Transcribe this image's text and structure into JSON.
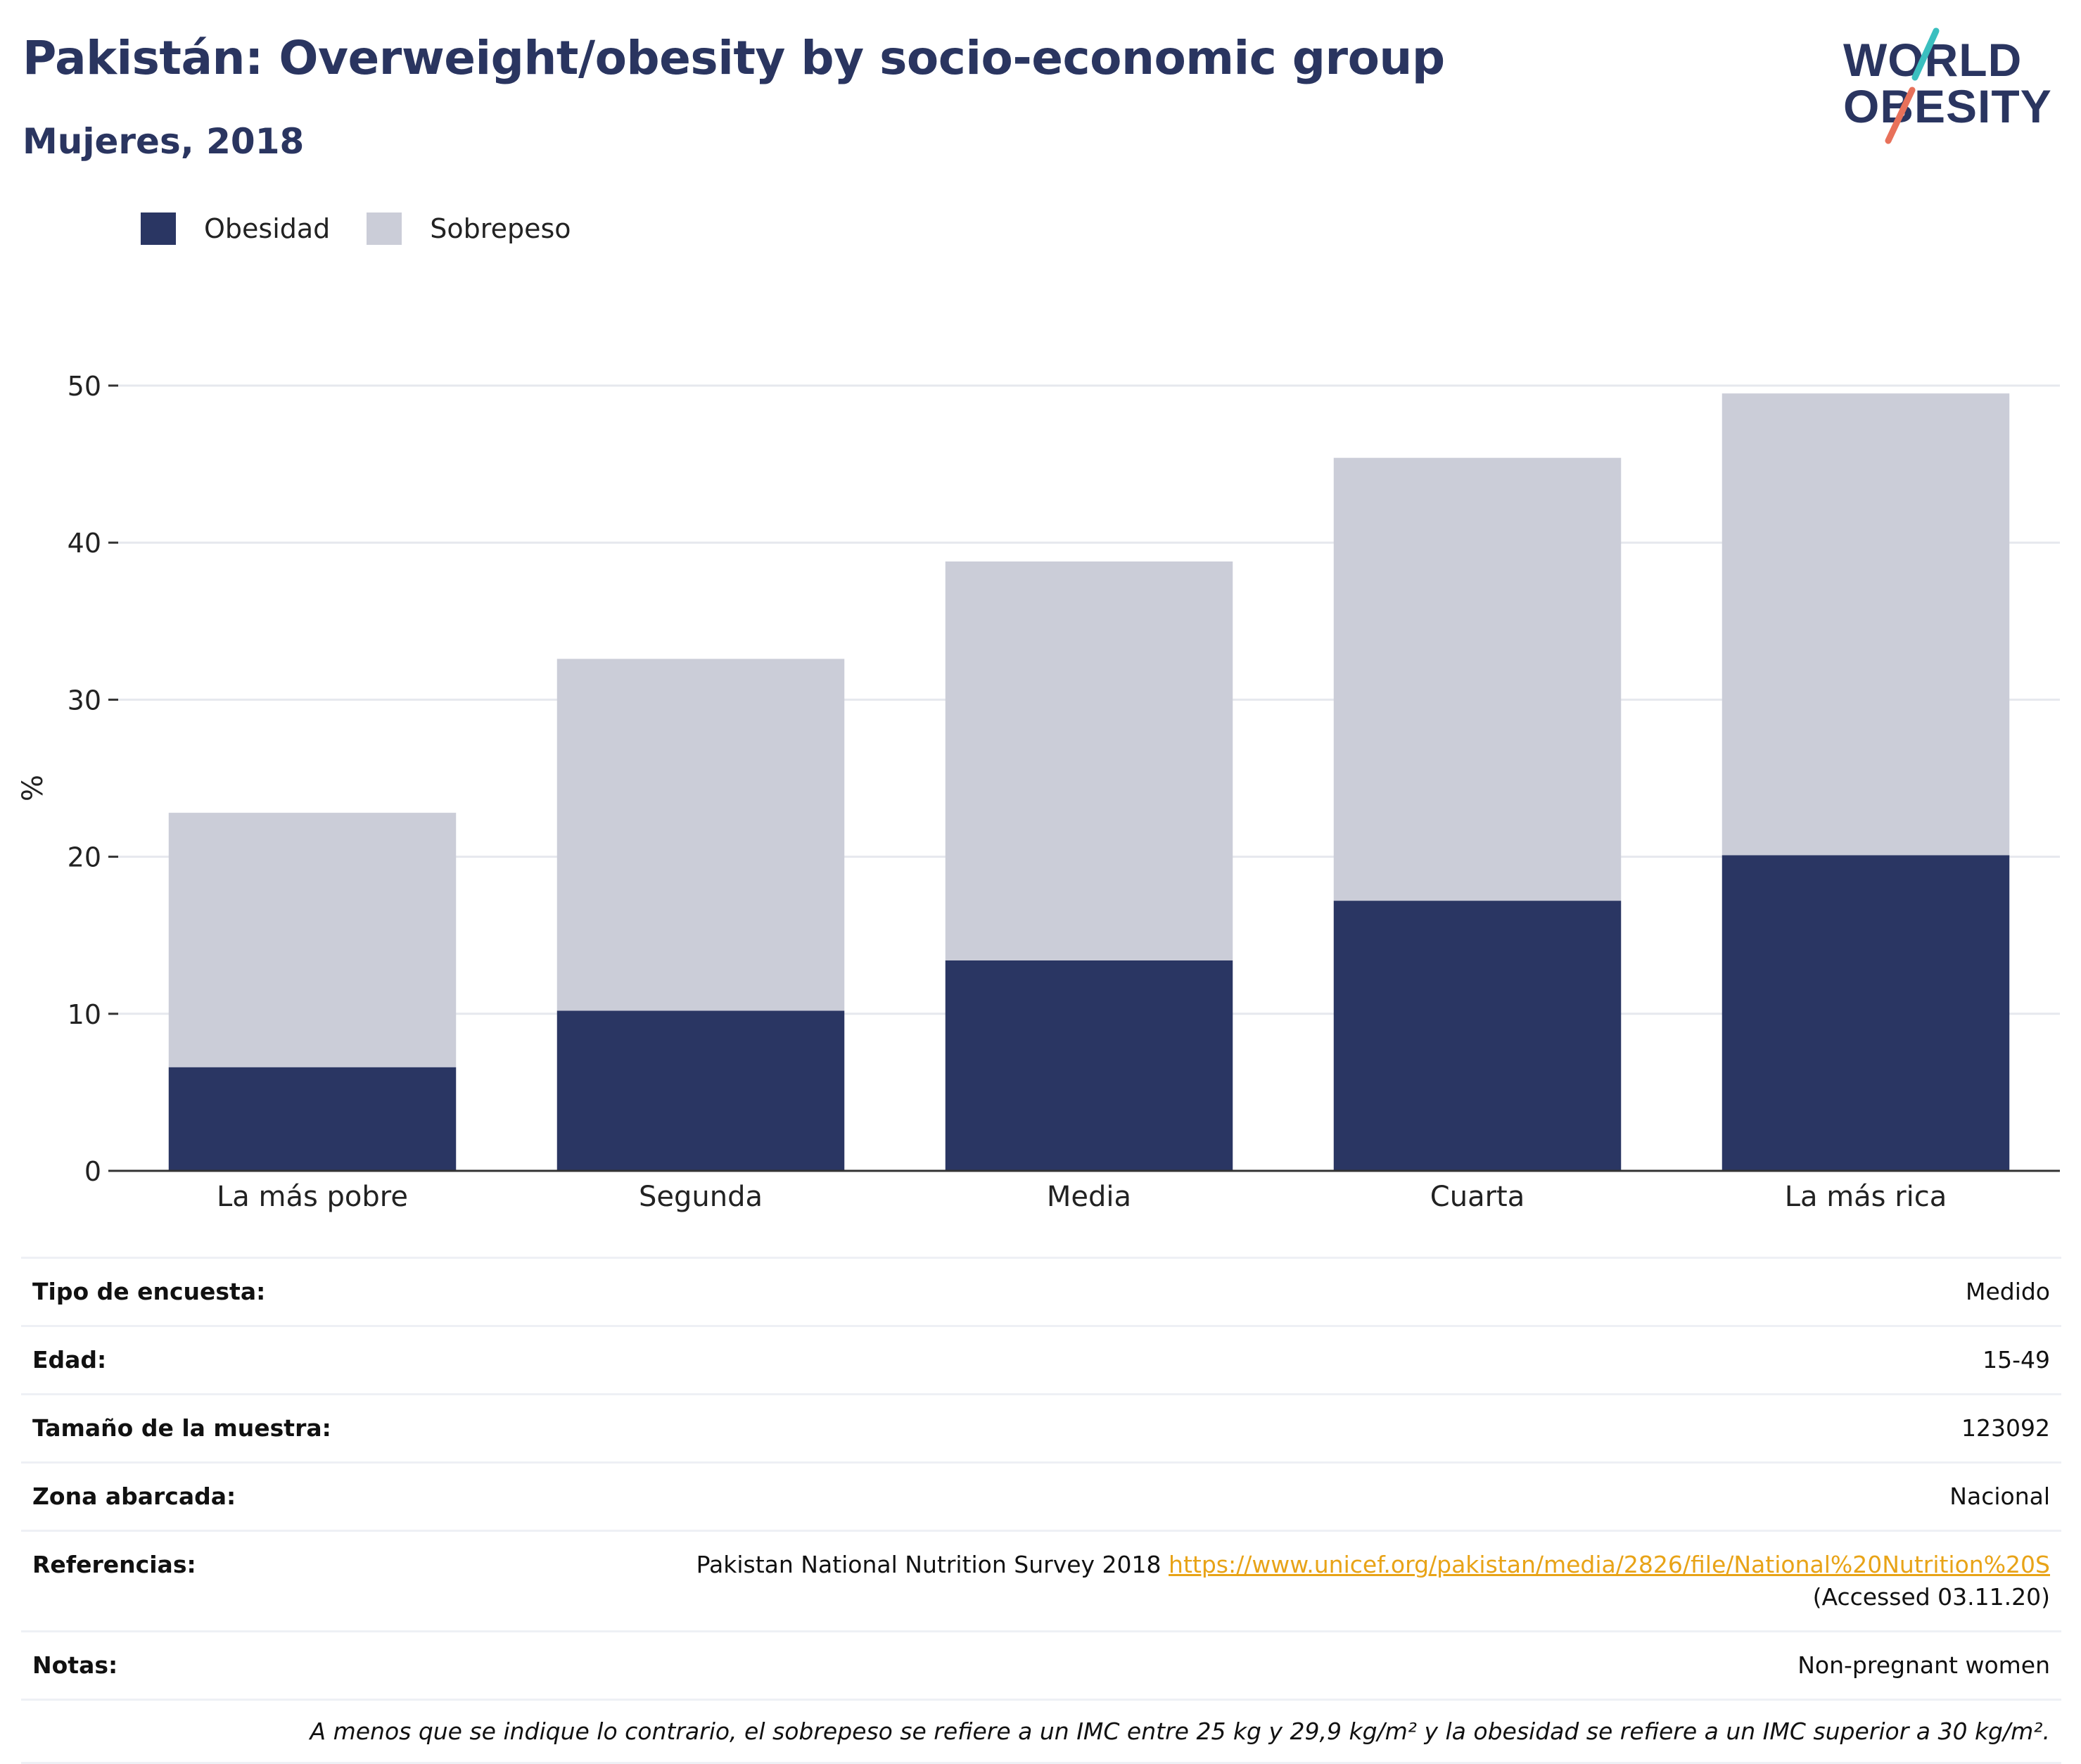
{
  "title": "Pakistán: Overweight/obesity by socio-economic group",
  "subtitle": "Mujeres, 2018",
  "logo": {
    "line1": "WORLD",
    "line2": "OBESITY"
  },
  "colors": {
    "obesity": "#2a3663",
    "overweight": "#cbcdd8",
    "title": "#2a3560",
    "link": "#e8a317",
    "logo_teal": "#3bbfbf",
    "logo_coral": "#e8715a"
  },
  "legend": [
    {
      "label": "Obesidad",
      "color": "#2a3663"
    },
    {
      "label": "Sobrepeso",
      "color": "#cbcdd8"
    }
  ],
  "chart_data": {
    "type": "bar",
    "stacked": true,
    "categories": [
      "La más pobre",
      "Segunda",
      "Media",
      "Cuarta",
      "La más rica"
    ],
    "series": [
      {
        "name": "Obesidad",
        "values": [
          6.6,
          10.2,
          13.4,
          17.2,
          20.1
        ]
      },
      {
        "name": "Sobrepeso",
        "values": [
          16.2,
          22.4,
          25.4,
          28.2,
          29.4
        ]
      }
    ],
    "ylabel": "%",
    "ylim": [
      0,
      50
    ],
    "yticks": [
      0,
      10,
      20,
      30,
      40,
      50
    ],
    "grid": true,
    "legend_position": "top-left"
  },
  "meta": {
    "survey_type": {
      "label": "Tipo de encuesta:",
      "value": "Medido"
    },
    "age": {
      "label": "Edad:",
      "value": "15-49"
    },
    "sample": {
      "label": "Tamaño de la muestra:",
      "value": "123092"
    },
    "area": {
      "label": "Zona abarcada:",
      "value": "Nacional"
    },
    "references": {
      "label": "Referencias:",
      "text": "Pakistan National Nutrition Survey 2018 ",
      "link": "https://www.unicef.org/pakistan/media/2826/file/National%20Nutrition%20S",
      "after": " (Accessed 03.11.20)"
    },
    "notes": {
      "label": "Notas:",
      "value": "Non-pregnant women"
    },
    "footnote": "A menos que se indique lo contrario, el sobrepeso se refiere a un IMC entre 25 kg y 29,9 kg/m² y la obesidad se refiere a un IMC superior a 30 kg/m²."
  }
}
